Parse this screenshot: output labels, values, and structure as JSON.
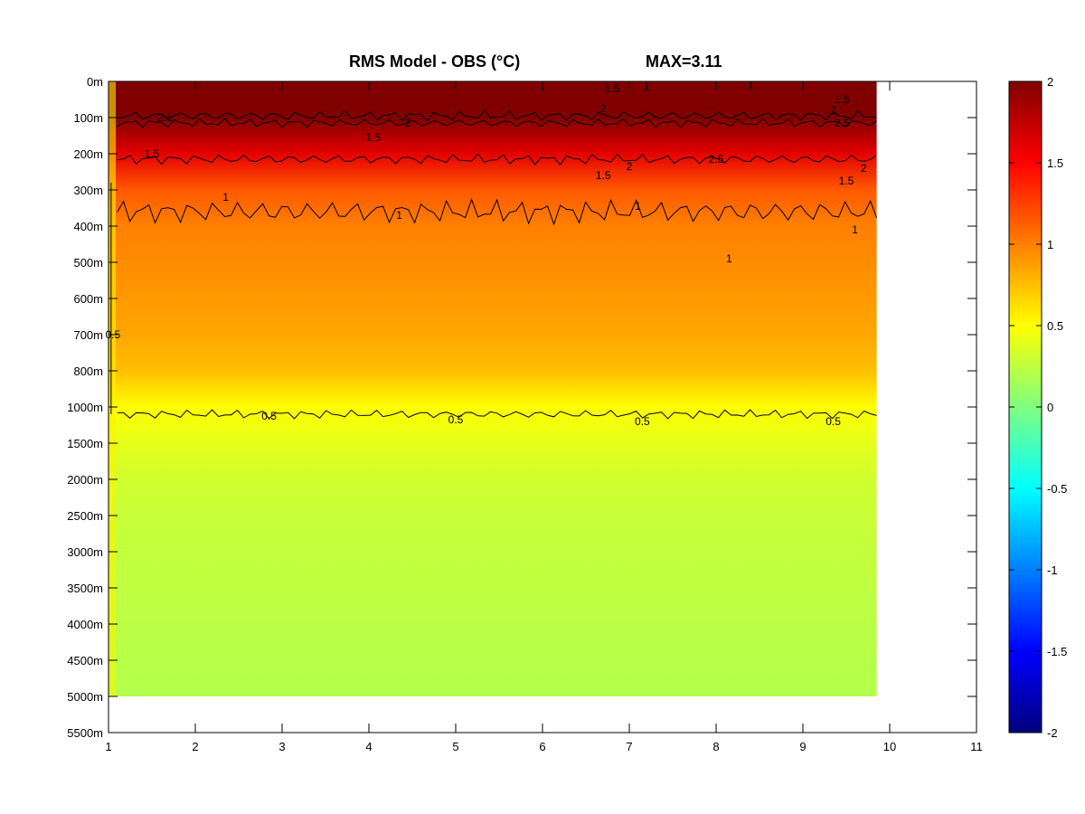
{
  "chart_data": {
    "type": "heatmap",
    "title": "RMS Model - OBS (°C)",
    "max_label": "MAX=3.11",
    "x": {
      "min": 1,
      "max": 11,
      "ticks": [
        1,
        2,
        3,
        4,
        5,
        6,
        7,
        8,
        9,
        10,
        11
      ],
      "data_end": 9.85
    },
    "y": {
      "tick_labels": [
        "0m",
        "100m",
        "200m",
        "300m",
        "400m",
        "500m",
        "600m",
        "700m",
        "800m",
        "1000m",
        "1500m",
        "2000m",
        "2500m",
        "3000m",
        "3500m",
        "4000m",
        "4500m",
        "5000m",
        "5500m"
      ],
      "data_end_label": "5000m"
    },
    "colorbar": {
      "min": -2,
      "max": 2,
      "ticks": [
        2,
        1.5,
        1,
        0.5,
        0,
        -0.5,
        -1,
        -1.5,
        -2
      ],
      "colormap": "jet"
    },
    "contour_levels": [
      0.5,
      1,
      1.5,
      2,
      2.5
    ],
    "depth_profile": [
      {
        "depth": "0m",
        "rms": 2.4
      },
      {
        "depth": "100m",
        "rms": 2.3
      },
      {
        "depth": "200m",
        "rms": 1.6
      },
      {
        "depth": "300m",
        "rms": 1.15
      },
      {
        "depth": "400m",
        "rms": 1.0
      },
      {
        "depth": "500m",
        "rms": 0.95
      },
      {
        "depth": "600m",
        "rms": 0.9
      },
      {
        "depth": "700m",
        "rms": 0.85
      },
      {
        "depth": "800m",
        "rms": 0.75
      },
      {
        "depth": "1000m",
        "rms": 0.5
      },
      {
        "depth": "1500m",
        "rms": 0.4
      },
      {
        "depth": "2000m",
        "rms": 0.32
      },
      {
        "depth": "2500m",
        "rms": 0.28
      },
      {
        "depth": "5000m",
        "rms": 0.2
      }
    ],
    "contour_labels": [
      {
        "text": "2.5",
        "x": 1.65,
        "y": 1.0
      },
      {
        "text": "1.5",
        "x": 1.5,
        "y": 2.0
      },
      {
        "text": "1",
        "x": 2.35,
        "y": 3.2
      },
      {
        "text": "1.5",
        "x": 4.05,
        "y": 1.55
      },
      {
        "text": "2",
        "x": 4.45,
        "y": 1.15
      },
      {
        "text": "1",
        "x": 4.35,
        "y": 3.7
      },
      {
        "text": "1.5",
        "x": 6.8,
        "y": 0.2
      },
      {
        "text": "1",
        "x": 7.2,
        "y": 0.15
      },
      {
        "text": "1",
        "x": 8.4,
        "y": 0.1
      },
      {
        "text": "2",
        "x": 6.7,
        "y": 0.75
      },
      {
        "text": "1.5",
        "x": 9.45,
        "y": 0.5
      },
      {
        "text": "2",
        "x": 9.35,
        "y": 0.8
      },
      {
        "text": "2.5",
        "x": 9.45,
        "y": 1.15
      },
      {
        "text": "2.5",
        "x": 8.0,
        "y": 2.15
      },
      {
        "text": "2",
        "x": 9.7,
        "y": 2.4
      },
      {
        "text": "2",
        "x": 7.0,
        "y": 2.35
      },
      {
        "text": "1.5",
        "x": 6.7,
        "y": 2.6
      },
      {
        "text": "1.5",
        "x": 9.5,
        "y": 2.75
      },
      {
        "text": "1",
        "x": 7.1,
        "y": 3.45
      },
      {
        "text": "1",
        "x": 8.15,
        "y": 4.9
      },
      {
        "text": "1",
        "x": 9.6,
        "y": 4.1
      },
      {
        "text": "0.5",
        "x": 1.05,
        "y": 7.0
      },
      {
        "text": "0.5",
        "x": 2.85,
        "y": 9.25
      },
      {
        "text": "0.5",
        "x": 5.0,
        "y": 9.35
      },
      {
        "text": "0.5",
        "x": 7.15,
        "y": 9.4
      },
      {
        "text": "0.5",
        "x": 9.35,
        "y": 9.4
      }
    ]
  }
}
